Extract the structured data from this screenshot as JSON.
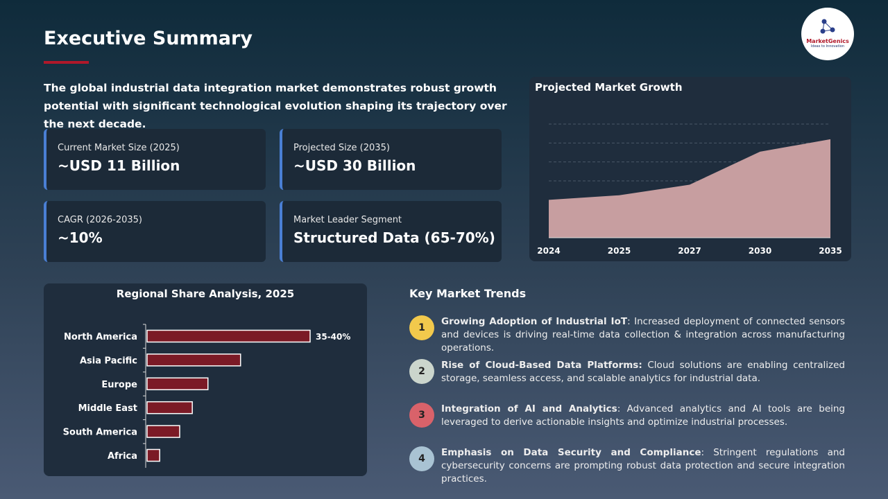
{
  "header": {
    "title": "Executive Summary",
    "intro": "The global industrial data integration market demonstrates robust growth potential with significant technological evolution shaping its trajectory over the next decade."
  },
  "logo": {
    "name": "MarketGenics",
    "tagline": "Ideas to Innovation"
  },
  "cards": [
    {
      "label": "Current Market Size (2025)",
      "value": "~USD 11 Billion"
    },
    {
      "label": "Projected Size (2035)",
      "value": "~USD 30 Billion"
    },
    {
      "label": "CAGR (2026-2035)",
      "value": "~10%"
    },
    {
      "label": "Market Leader Segment",
      "value": "Structured Data (65-70%)"
    }
  ],
  "trends": {
    "title": "Key Market Trends",
    "items": [
      {
        "number": "1",
        "heading": "Growing Adoption of Industrial IoT",
        "text": ": Increased deployment of connected sensors and devices is driving real-time data collection & integration across manufacturing operations.",
        "color": "#f2c94c"
      },
      {
        "number": "2",
        "heading": "Rise of Cloud-Based Data Platforms:",
        "text": " Cloud solutions are enabling centralized storage, seamless access, and scalable analytics for industrial data.",
        "color": "#cbd5cc"
      },
      {
        "number": "3",
        "heading": "Integration of AI and Analytics",
        "text": ": Advanced analytics and AI tools are being leveraged to derive actionable insights and optimize industrial processes.",
        "color": "#d9626a"
      },
      {
        "number": "4",
        "heading": "Emphasis on Data Security and Compliance",
        "text": ": Stringent regulations and cybersecurity concerns are prompting robust data protection and secure integration practices.",
        "color": "#a9c3d3"
      }
    ]
  },
  "chart_data": [
    {
      "type": "area",
      "title": "Projected Market Growth",
      "categories": [
        "2024",
        "2025",
        "2027",
        "2030",
        "2035"
      ],
      "values": [
        10,
        11.2,
        14,
        22.7,
        26
      ],
      "color": "#c79ea0",
      "ygrid": [
        15,
        20,
        25,
        30
      ]
    },
    {
      "type": "hbar",
      "title": "Regional Share Analysis, 2025",
      "categories": [
        "North America",
        "Asia Pacific",
        "Europe",
        "Middle East",
        "South America",
        "Africa"
      ],
      "values": [
        37.5,
        21.5,
        14,
        10.4,
        7.5,
        2.9
      ],
      "value_labels": [
        "35-40%",
        null,
        null,
        null,
        null,
        null
      ],
      "color": "#7b1a26"
    }
  ]
}
